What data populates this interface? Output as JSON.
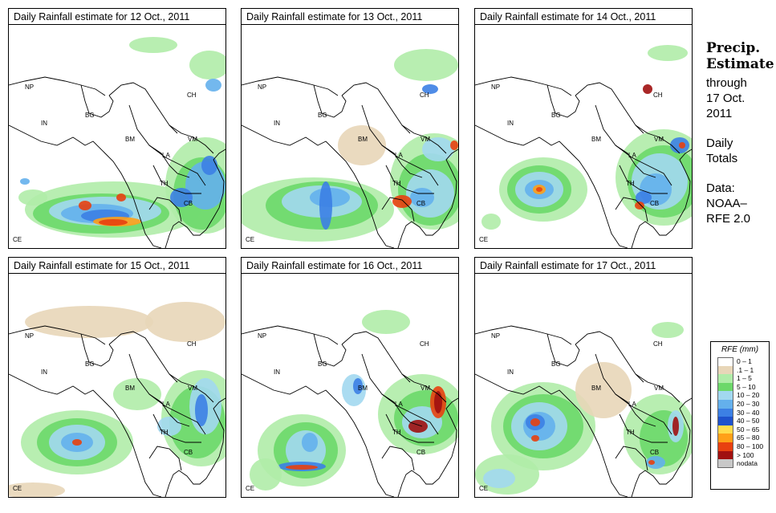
{
  "panels": [
    {
      "title": "Daily Rainfall estimate for  12 Oct., 2011"
    },
    {
      "title": "Daily Rainfall estimate for  13 Oct., 2011"
    },
    {
      "title": "Daily Rainfall estimate for  14 Oct., 2011"
    },
    {
      "title": "Daily Rainfall estimate for  15 Oct., 2011"
    },
    {
      "title": "Daily Rainfall estimate for  16 Oct., 2011"
    },
    {
      "title": "Daily Rainfall estimate for  17 Oct., 2011"
    }
  ],
  "map_labels": {
    "np": "NP",
    "in": "IN",
    "bg": "BG",
    "bm": "BM",
    "ch": "CH",
    "vm": "VM",
    "la": "LA",
    "th": "TH",
    "cb": "CB",
    "ce": "CE"
  },
  "sidebar": {
    "title_line1": "Precip.",
    "title_line2": "Estimate",
    "through": "through",
    "date_line1": "17 Oct.",
    "date_line2": "2011",
    "totals_line1": "Daily",
    "totals_line2": "Totals",
    "data_line1": "Data:",
    "data_line2": "NOAA–",
    "data_line3": "RFE 2.0"
  },
  "legend": {
    "title": "RFE (mm)",
    "items": [
      {
        "label": "0 – 1",
        "color": "#ffffff"
      },
      {
        "label": ".1 – 1",
        "color": "#e8d6b8"
      },
      {
        "label": "1 – 5",
        "color": "#b0eca8"
      },
      {
        "label": "5 – 10",
        "color": "#6cd86a"
      },
      {
        "label": "10 – 20",
        "color": "#a2d8f0"
      },
      {
        "label": "20 – 30",
        "color": "#64b0ec"
      },
      {
        "label": "30 – 40",
        "color": "#3c80e4"
      },
      {
        "label": "40 – 50",
        "color": "#1e52cc"
      },
      {
        "label": "50 – 65",
        "color": "#ffdc4c"
      },
      {
        "label": "65 – 80",
        "color": "#ffa018"
      },
      {
        "label": "80 – 100",
        "color": "#e84010"
      },
      {
        "label": "> 100",
        "color": "#a01010"
      },
      {
        "label": "nodata",
        "color": "#c8c8c8"
      }
    ]
  }
}
